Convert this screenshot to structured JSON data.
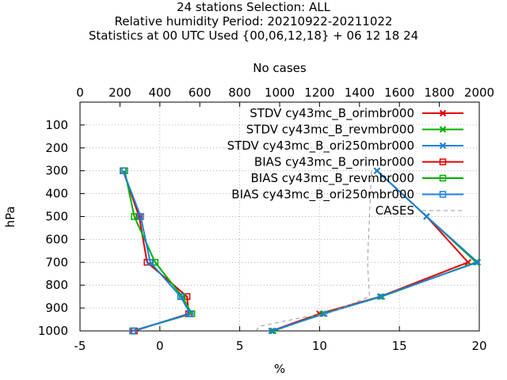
{
  "chart_data": {
    "type": "line",
    "title_lines": [
      "24 stations Selection: ALL",
      "Relative humidity  Period: 20210922-20211022",
      "Statistics at 00 UTC  Used {00,06,12,18} + 06 12 18 24"
    ],
    "xlabel": "%",
    "ylabel": "hPa",
    "x2label": "No cases",
    "xlim": [
      -5,
      20
    ],
    "ylim": [
      1000,
      0
    ],
    "x2lim": [
      0,
      2000
    ],
    "x_ticks": [
      -5,
      0,
      5,
      10,
      15,
      20
    ],
    "x2_ticks": [
      0,
      200,
      400,
      600,
      800,
      1000,
      1200,
      1400,
      1600,
      1800,
      2000
    ],
    "y_ticks": [
      100,
      200,
      300,
      400,
      500,
      600,
      700,
      800,
      900,
      1000
    ],
    "grid": true,
    "legend_position": "top-right",
    "series": [
      {
        "name": "STDV cy43mc_B_orimbr000",
        "color": "#e00000",
        "marker": "x",
        "points": [
          [
            13.6,
            300
          ],
          [
            16.7,
            500
          ],
          [
            19.3,
            700
          ],
          [
            13.8,
            850
          ],
          [
            10.0,
            925
          ],
          [
            7.0,
            1000
          ]
        ]
      },
      {
        "name": "STDV cy43mc_B_revmbr000",
        "color": "#00b000",
        "marker": "x",
        "points": [
          [
            13.6,
            300
          ],
          [
            16.7,
            500
          ],
          [
            19.8,
            700
          ],
          [
            13.9,
            850
          ],
          [
            10.2,
            925
          ],
          [
            7.1,
            1000
          ]
        ]
      },
      {
        "name": "STDV cy43mc_B_ori250mbr000",
        "color": "#1e7fdc",
        "marker": "x",
        "points": [
          [
            13.6,
            300
          ],
          [
            16.7,
            500
          ],
          [
            19.9,
            700
          ],
          [
            13.8,
            850
          ],
          [
            10.3,
            925
          ],
          [
            7.0,
            1000
          ]
        ]
      },
      {
        "name": "BIAS cy43mc_B_orimbr000",
        "color": "#e00000",
        "marker": "square",
        "points": [
          [
            -2.3,
            300
          ],
          [
            -1.3,
            500
          ],
          [
            -0.8,
            700
          ],
          [
            1.7,
            850
          ],
          [
            1.8,
            925
          ],
          [
            -1.6,
            1000
          ]
        ]
      },
      {
        "name": "BIAS cy43mc_B_revmbr000",
        "color": "#00b000",
        "marker": "square",
        "points": [
          [
            -2.2,
            300
          ],
          [
            -1.6,
            500
          ],
          [
            -0.3,
            700
          ],
          [
            1.4,
            850
          ],
          [
            2.0,
            925
          ],
          [
            -1.7,
            1000
          ]
        ]
      },
      {
        "name": "BIAS cy43mc_B_ori250mbr000",
        "color": "#1e7fdc",
        "marker": "square",
        "points": [
          [
            -2.3,
            300
          ],
          [
            -1.2,
            500
          ],
          [
            -0.6,
            700
          ],
          [
            1.3,
            850
          ],
          [
            1.9,
            925
          ],
          [
            -1.7,
            1000
          ]
        ]
      },
      {
        "name": "CASES",
        "color": "#999999",
        "marker": "none",
        "dashed": true,
        "axis": "x2",
        "points": [
          [
            1460,
            300
          ],
          [
            1450,
            500
          ],
          [
            1440,
            700
          ],
          [
            1450,
            850
          ],
          [
            1240,
            925
          ],
          [
            1120,
            940
          ],
          [
            900,
            980
          ],
          [
            880,
            1000
          ]
        ]
      }
    ]
  }
}
